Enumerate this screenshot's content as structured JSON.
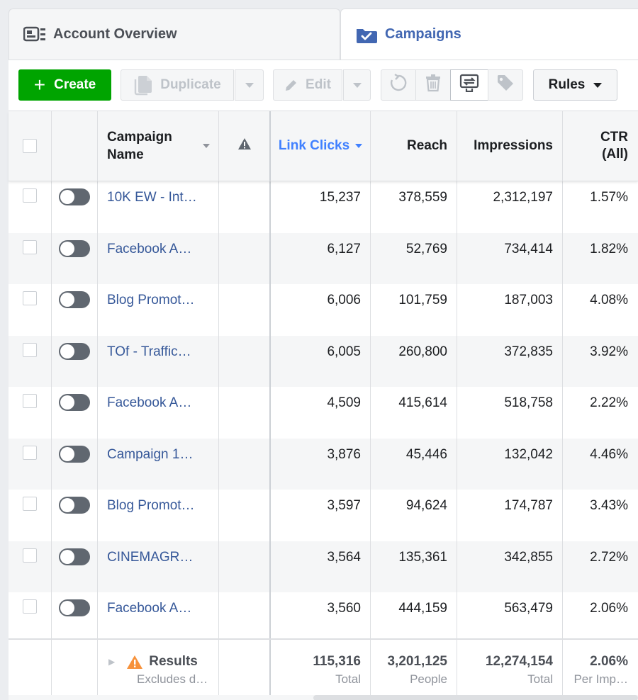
{
  "tabs": {
    "overview": {
      "label": "Account Overview",
      "icon": "dashboard-icon"
    },
    "campaigns": {
      "label": "Campaigns",
      "icon": "folder-check-icon"
    }
  },
  "toolbar": {
    "create_label": "Create",
    "duplicate_label": "Duplicate",
    "edit_label": "Edit",
    "rules_label": "Rules"
  },
  "table": {
    "columns": {
      "name": [
        "Campaign",
        "Name"
      ],
      "link_clicks": "Link Clicks",
      "reach": "Reach",
      "impressions": "Impressions",
      "ctr": [
        "CTR",
        "(All)"
      ]
    },
    "rows": [
      {
        "name": "10K EW - Int…",
        "link_clicks": "15,237",
        "reach": "378,559",
        "impressions": "2,312,197",
        "ctr": "1.57%"
      },
      {
        "name": "Facebook A…",
        "link_clicks": "6,127",
        "reach": "52,769",
        "impressions": "734,414",
        "ctr": "1.82%"
      },
      {
        "name": "Blog Promot…",
        "link_clicks": "6,006",
        "reach": "101,759",
        "impressions": "187,003",
        "ctr": "4.08%"
      },
      {
        "name": "TOf - Traffic…",
        "link_clicks": "6,005",
        "reach": "260,800",
        "impressions": "372,835",
        "ctr": "3.92%"
      },
      {
        "name": "Facebook A…",
        "link_clicks": "4,509",
        "reach": "415,614",
        "impressions": "518,758",
        "ctr": "2.22%"
      },
      {
        "name": "Campaign 1…",
        "link_clicks": "3,876",
        "reach": "45,446",
        "impressions": "132,042",
        "ctr": "4.46%"
      },
      {
        "name": "Blog Promot…",
        "link_clicks": "3,597",
        "reach": "94,624",
        "impressions": "174,787",
        "ctr": "3.43%"
      },
      {
        "name": "CINEMAGR…",
        "link_clicks": "3,564",
        "reach": "135,361",
        "impressions": "342,855",
        "ctr": "2.72%"
      },
      {
        "name": "Facebook A…",
        "link_clicks": "3,560",
        "reach": "444,159",
        "impressions": "563,479",
        "ctr": "2.06%"
      }
    ],
    "footer": {
      "results_label": "Results",
      "results_sub": "Excludes d…",
      "link_clicks": {
        "value": "115,316",
        "sub": "Total"
      },
      "reach": {
        "value": "3,201,125",
        "sub": "People"
      },
      "impressions": {
        "value": "12,274,154",
        "sub": "Total"
      },
      "ctr": {
        "value": "2.06%",
        "sub": "Per Imp…"
      }
    }
  },
  "colors": {
    "create_green": "#00a400",
    "link_blue": "#365899",
    "sort_blue": "#4080ff",
    "warning_orange": "#f7923b"
  }
}
